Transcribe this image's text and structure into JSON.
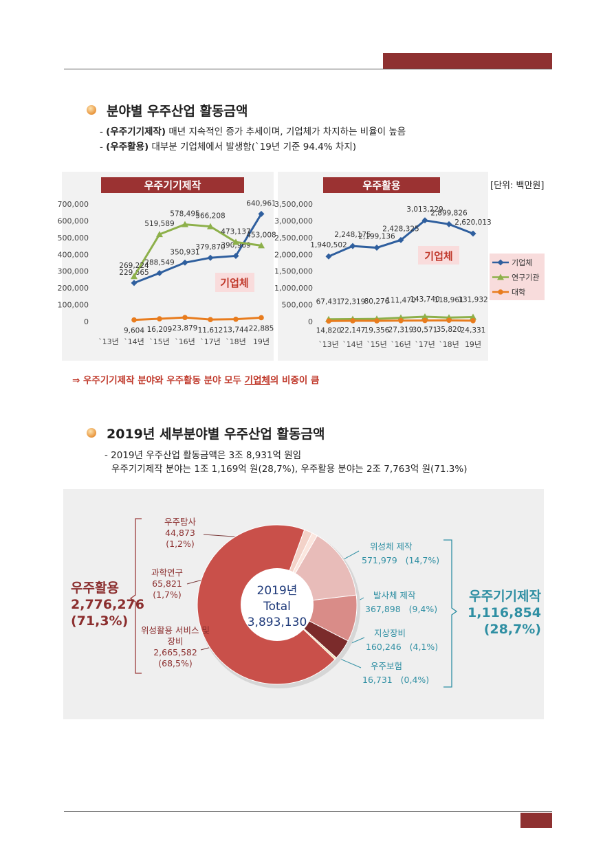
{
  "section1": {
    "title": "분야별 우주산업 활동금액",
    "bullets": [
      {
        "marker": "-",
        "lead": "(우주기기제작)",
        "text": "매년 지속적인 증가 추세이며, 기업체가 차지하는 비율이 높음"
      },
      {
        "marker": "-",
        "lead": "(우주활용)",
        "text": "대부분 기업체에서 발생함(`19년 기준 94.4% 차지)"
      }
    ],
    "unit": "[단위: 백만원]",
    "conclusion": {
      "before": "⇒ 우주기기제작 분야와 우주활동 분야 모두 ",
      "emphasis": "기업체",
      "after": "의 비중이 큼"
    }
  },
  "section2": {
    "title": "2019년 세부분야별 우주산업 활동금액",
    "lines": [
      "- 2019년 우주산업 활동금액은 3조 8,931억 원임",
      "우주기기제작 분야는 1조 1,169억 원(28,7%), 우주활용 분야는 2조 7,763억 원(71.3%)"
    ]
  },
  "chart_data": [
    {
      "type": "line",
      "title": "우주기기제작",
      "annotation": "기업체",
      "categories": [
        "`13년",
        "`14년",
        "`15년",
        "`16년",
        "`17년",
        "`18년",
        "19년"
      ],
      "series": [
        {
          "name": "기업체",
          "color": "#2f5f9e",
          "marker": "diamond",
          "values": [
            null,
            229665,
            288549,
            350931,
            379870,
            390969,
            640961
          ],
          "value_labels": [
            null,
            "229,665",
            "288,549",
            "350,931",
            "379,870",
            "390,969",
            "640,961"
          ]
        },
        {
          "name": "연구기관",
          "color": "#8db04a",
          "marker": "triangle",
          "values": [
            null,
            269224,
            519589,
            578495,
            566208,
            473137,
            453008
          ],
          "value_labels": [
            null,
            "269,224",
            "519,589",
            "578,495",
            "566,208",
            "473,137",
            "453,008"
          ]
        },
        {
          "name": "대학",
          "color": "#e87c1e",
          "marker": "circle",
          "values": [
            null,
            9604,
            16209,
            23879,
            11612,
            13744,
            22885
          ],
          "value_labels": [
            null,
            "9,604",
            "16,209",
            "23,879",
            "11,612",
            "13,744",
            "22,885"
          ]
        }
      ],
      "ylim": [
        0,
        700000
      ],
      "yticks": [
        0,
        {
          "value": 100000,
          "label": "100,000"
        },
        {
          "value": 200000,
          "label": "200,000"
        },
        {
          "value": 300000,
          "label": "300,000"
        },
        {
          "value": 400000,
          "label": "400,000"
        },
        {
          "value": 500000,
          "label": "500,000"
        },
        {
          "value": 600000,
          "label": "600,000"
        },
        {
          "value": 700000,
          "label": "700,000"
        }
      ],
      "grid": false,
      "legend": false
    },
    {
      "type": "line",
      "title": "우주활용",
      "annotation": "기업체",
      "categories": [
        "`13년",
        "`14년",
        "`15년",
        "`16년",
        "`17년",
        "`18년",
        "19년"
      ],
      "series": [
        {
          "name": "기업체",
          "color": "#2f5f9e",
          "marker": "diamond",
          "values": [
            1940502,
            2248175,
            2199136,
            2428325,
            3013229,
            2899826,
            2620013
          ],
          "value_labels": [
            "1,940,502",
            "2,248,175",
            "2,199,136",
            "2,428,325",
            "3,013,229",
            "2,899,826",
            "2,620,013"
          ]
        },
        {
          "name": "연구기관",
          "color": "#8db04a",
          "marker": "triangle",
          "values": [
            67431,
            72319,
            80276,
            111470,
            143740,
            118961,
            131932
          ],
          "value_labels": [
            "67,431",
            "72,319",
            "80,276",
            "111,470",
            "143,740",
            "118,961",
            "131,932"
          ]
        },
        {
          "name": "대학",
          "color": "#e87c1e",
          "marker": "circle",
          "values": [
            14820,
            22147,
            19356,
            27319,
            30571,
            35820,
            24331
          ],
          "value_labels": [
            "14,820",
            "22,147",
            "19,356",
            "27,319",
            "30,571",
            "35,820",
            "24,331"
          ]
        }
      ],
      "ylim": [
        0,
        3500000
      ],
      "yticks": [
        0,
        {
          "value": 500000,
          "label": "500,000"
        },
        {
          "value": 1000000,
          "label": "1,000,000"
        },
        {
          "value": 1500000,
          "label": "1,500,000"
        },
        {
          "value": 2000000,
          "label": "2,000,000"
        },
        {
          "value": 2500000,
          "label": "2,500,000"
        },
        {
          "value": 3000000,
          "label": "3,000,000"
        },
        {
          "value": 3500000,
          "label": "3,500,000"
        }
      ],
      "grid": false,
      "legend": "right"
    },
    {
      "type": "donut",
      "center_text": [
        "2019년",
        "Total"
      ],
      "total": {
        "value": 3893130,
        "label": "3,893,130"
      },
      "categories": [
        "과학연구",
        "우주탐사",
        "위성체 제작",
        "발사체 제작",
        "지상장비",
        "우주보험",
        "위성활용 서비스 및 장비"
      ],
      "values": [
        65821,
        44873,
        571979,
        367898,
        160246,
        16731,
        2665582
      ],
      "value_labels": [
        "65,821",
        "44,873",
        "571,979",
        "367,898",
        "160,246",
        "16,731",
        "2,665,582"
      ],
      "percents": [
        1.7,
        1.2,
        14.7,
        9.4,
        4.1,
        0.4,
        68.5
      ],
      "percent_labels": [
        "(1,7%)",
        "(1,2%)",
        "(14,7%)",
        "(9,4%)",
        "(4,1%)",
        "(0,4%)",
        "(68,5%)"
      ],
      "colors": [
        "#f3d2c8",
        "#fbe6de",
        "#e8bcb9",
        "#d98c88",
        "#7b2b2b",
        "#f3dfb0",
        "#c9504a"
      ],
      "groups": [
        {
          "name": "우주활용",
          "color": "#8b2e2e",
          "value": 2776276,
          "value_label": "2,776,276",
          "percent": 71.3,
          "percent_label": "(71,3%)"
        },
        {
          "name": "우주기기제작",
          "color": "#2f8fa3",
          "value": 1116854,
          "value_label": "1,116,854",
          "percent": 28.7,
          "percent_label": "(28,7%)"
        }
      ]
    }
  ]
}
